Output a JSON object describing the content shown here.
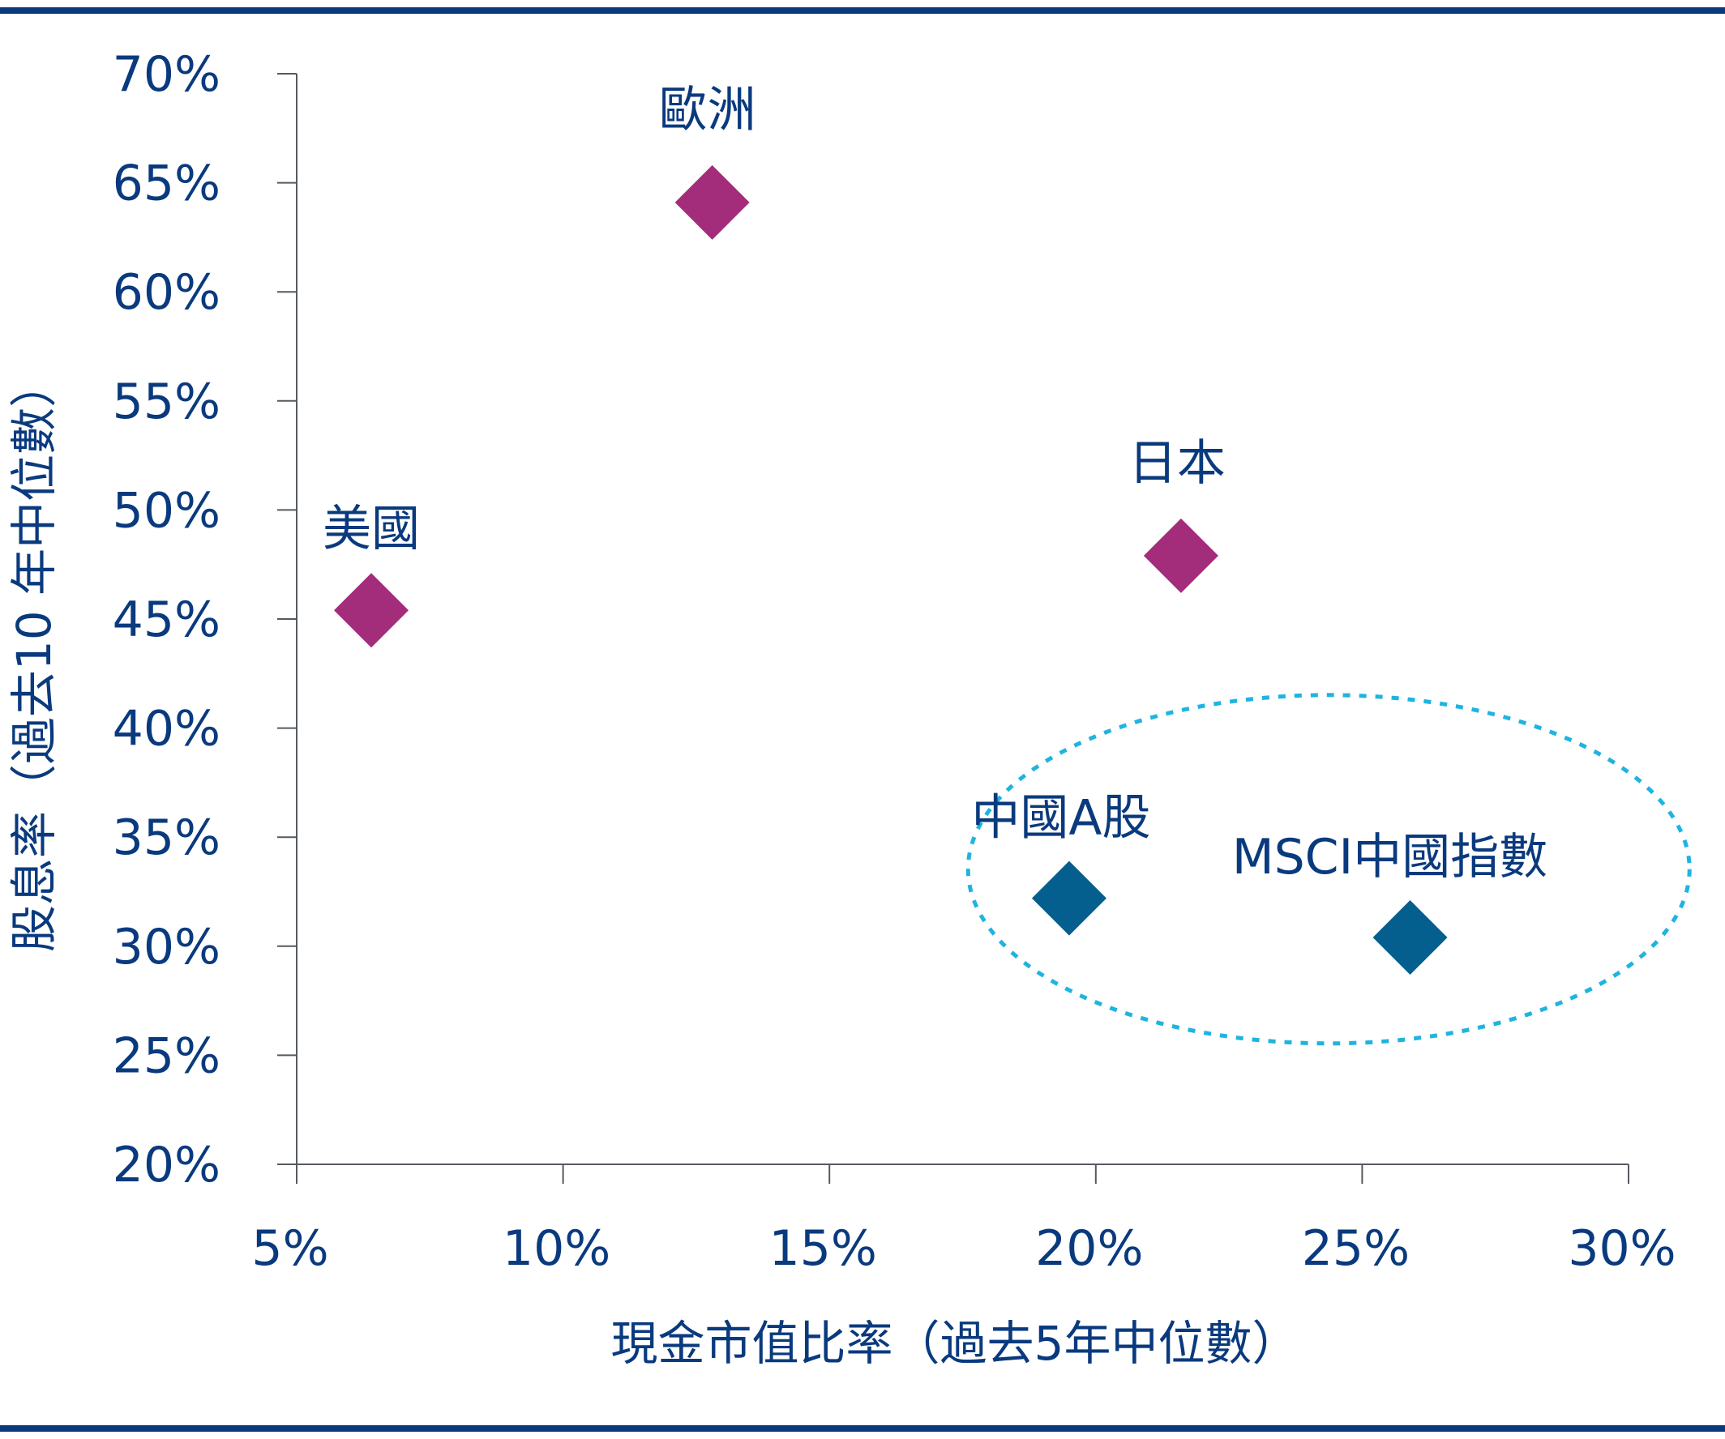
{
  "chart_data": {
    "type": "scatter",
    "title": "",
    "xlabel": "現金市值比率（過去5年中位數）",
    "ylabel": "股息率（過去10 年中位數）",
    "xlim": [
      5,
      30
    ],
    "ylim": [
      20,
      70
    ],
    "x_ticks": [
      5,
      10,
      15,
      20,
      25,
      30
    ],
    "x_tick_labels": [
      "5%",
      "10%",
      "15%",
      "20%",
      "25%",
      "30%"
    ],
    "y_ticks": [
      20,
      25,
      30,
      35,
      40,
      45,
      50,
      55,
      60,
      65,
      70
    ],
    "y_tick_labels": [
      "20%",
      "25%",
      "30%",
      "35%",
      "40%",
      "45%",
      "50%",
      "55%",
      "60%",
      "65%",
      "70%"
    ],
    "grid": false,
    "marker": "diamond",
    "points": [
      {
        "label": "美國",
        "x": 6.4,
        "y": 45.4,
        "color": "#a32c7b"
      },
      {
        "label": "歐洲",
        "x": 12.8,
        "y": 64.1,
        "color": "#a32c7b"
      },
      {
        "label": "日本",
        "x": 21.6,
        "y": 47.9,
        "color": "#a32c7b"
      },
      {
        "label": "中國A股",
        "x": 19.5,
        "y": 32.2,
        "color": "#045f8f"
      },
      {
        "label": "MSCI中國指數",
        "x": 25.9,
        "y": 30.4,
        "color": "#045f8f"
      }
    ],
    "highlight": {
      "shape": "dashed-ellipse",
      "color": "#1fb4e0",
      "encloses": [
        "中國A股",
        "MSCI中國指數"
      ]
    }
  },
  "colors": {
    "text": "#0a3a7e",
    "axis": "#555a60",
    "rule": "#0a3a7e"
  }
}
